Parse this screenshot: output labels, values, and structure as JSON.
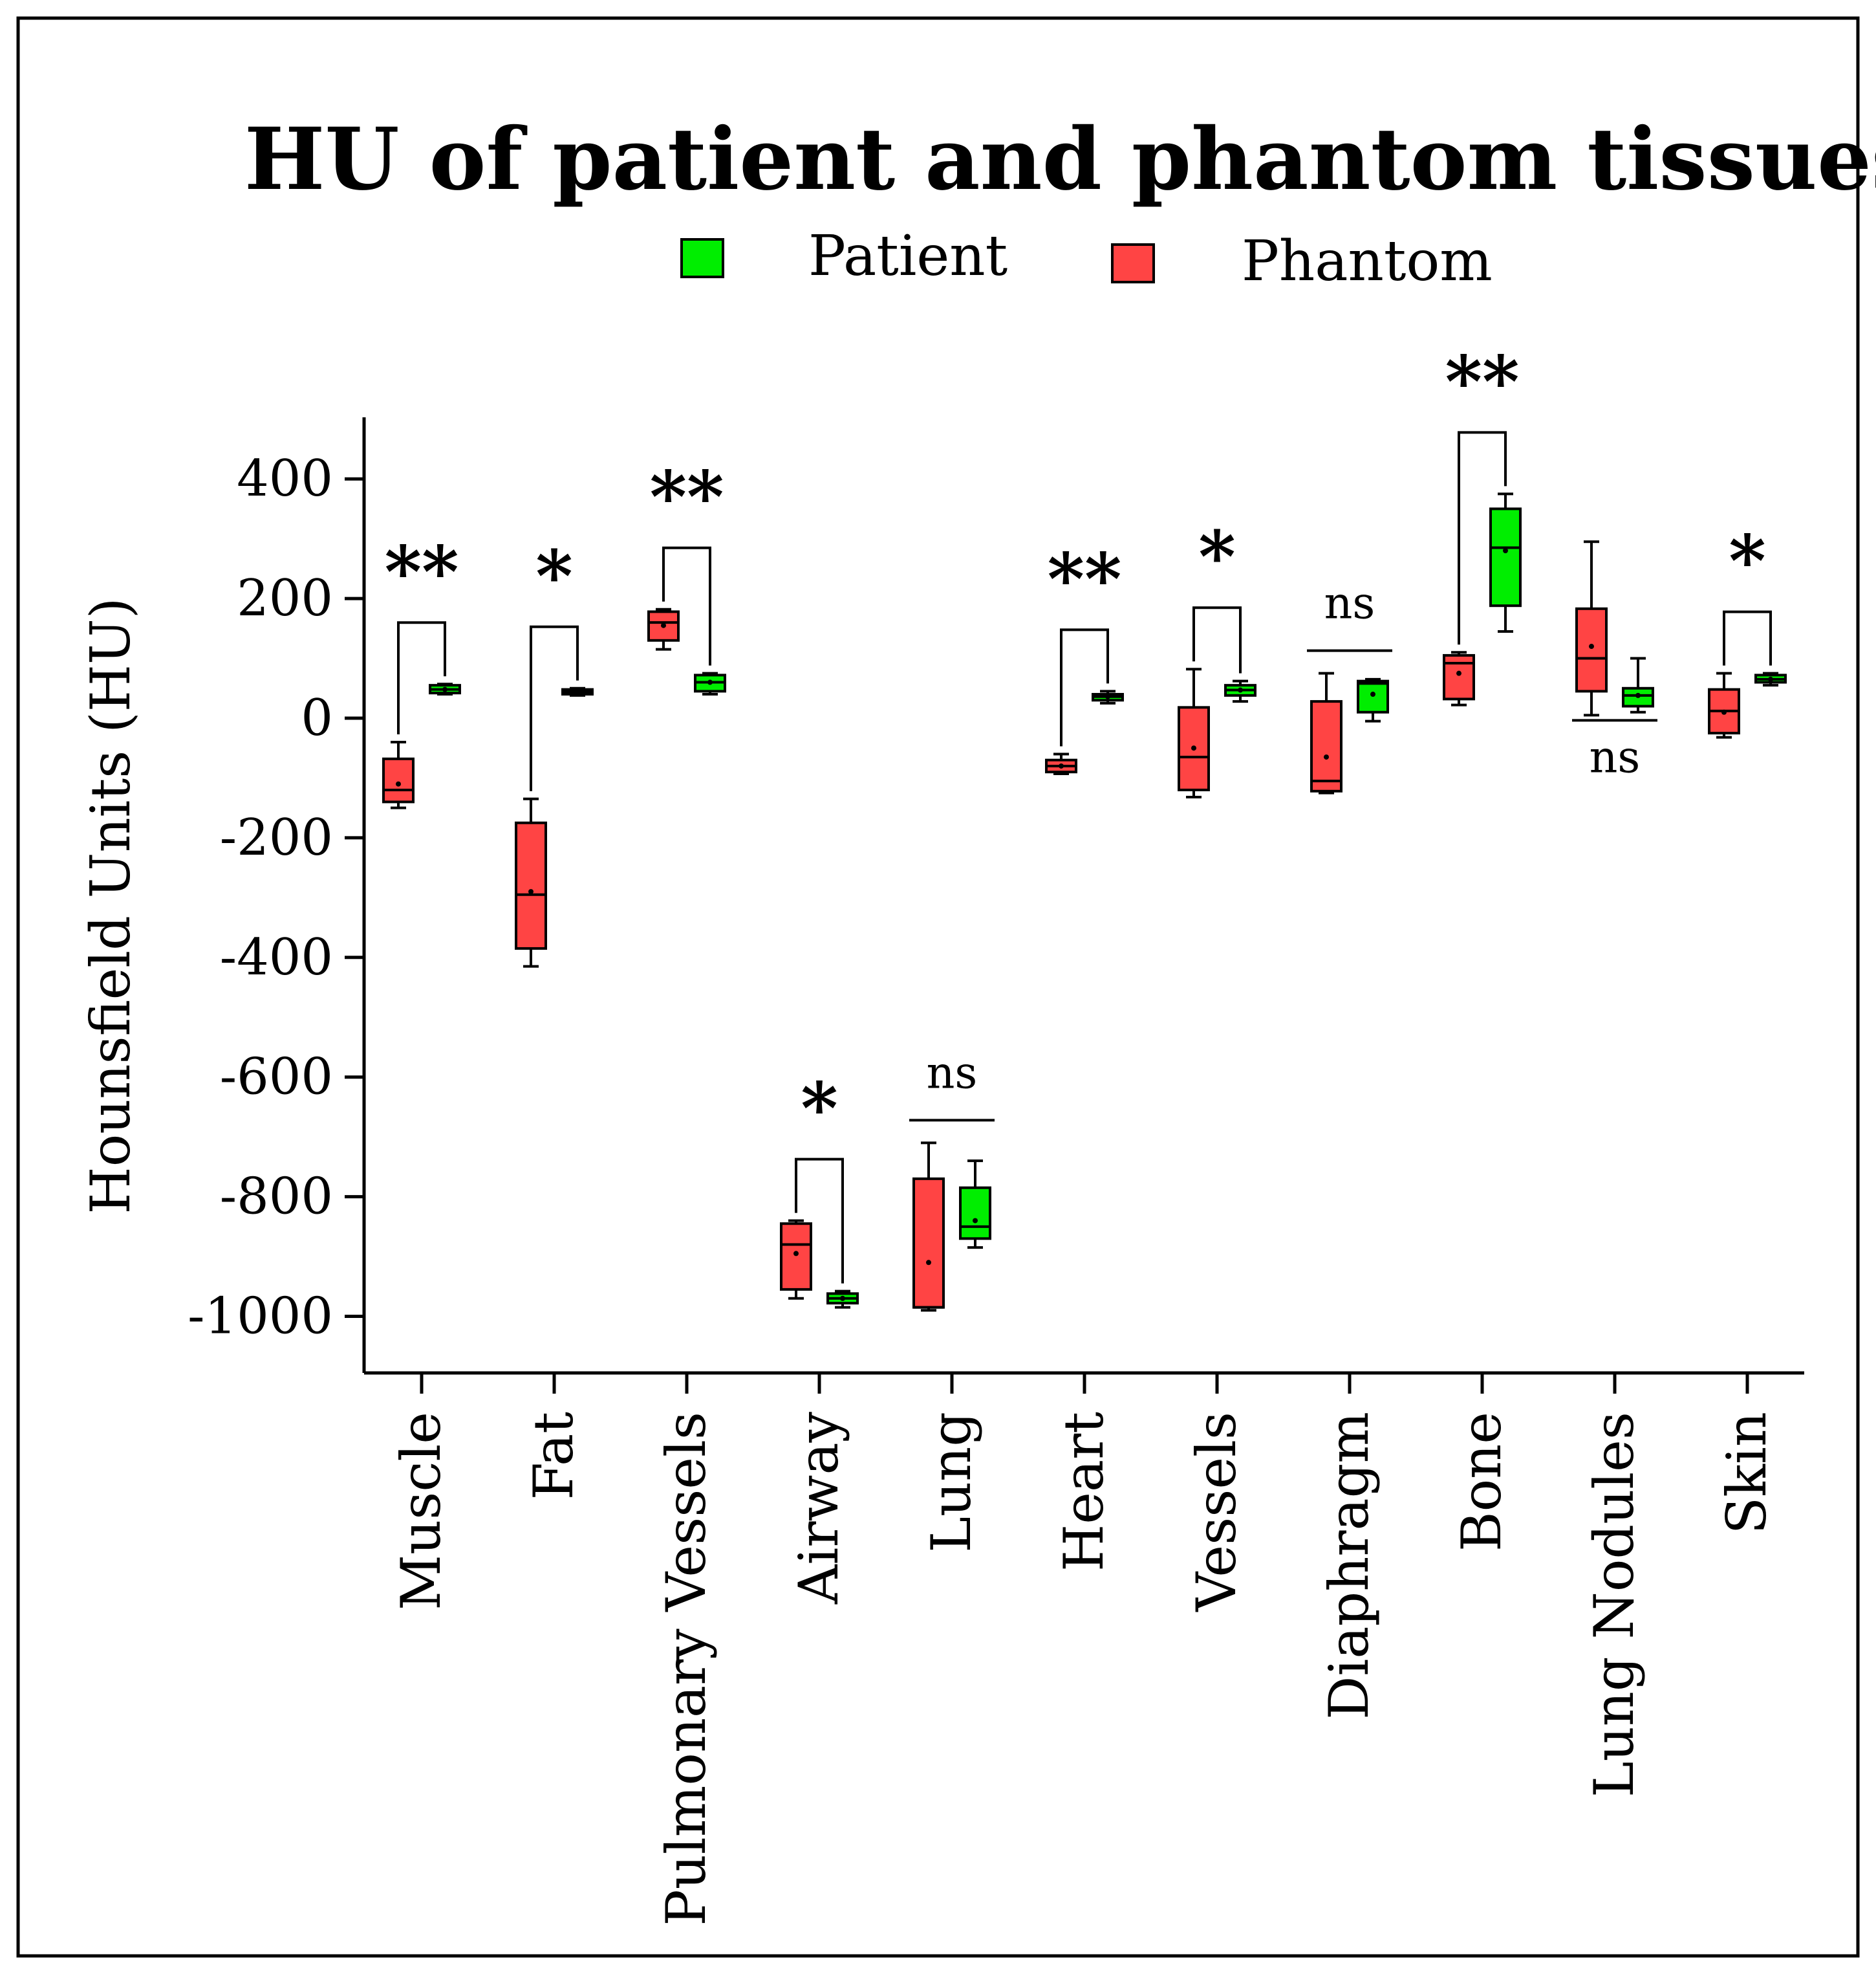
{
  "chart_data": {
    "type": "box",
    "title": "HU of patient and phantom tissues",
    "xlabel": "",
    "ylabel": "Hounsfield Units (HU)",
    "ylim": [
      -1100,
      500
    ],
    "yticks": [
      400,
      200,
      0,
      -200,
      -400,
      -600,
      -800,
      -1000
    ],
    "legend_position": "top",
    "categories": [
      "Muscle",
      "Fat",
      "Pulmonary Vessels",
      "Airway",
      "Lung",
      "Heart",
      "Vessels",
      "Diaphragm",
      "Bone",
      "Lung Nodules",
      "Skin"
    ],
    "series": [
      {
        "name": "Patient",
        "color": "#00ee00",
        "boxes": [
          {
            "min": 40,
            "q1": 42,
            "median": 48,
            "q3": 55,
            "max": 57,
            "mean": 48
          },
          {
            "min": 38,
            "q1": 40,
            "median": 44,
            "q3": 48,
            "max": 50,
            "mean": 44
          },
          {
            "min": 40,
            "q1": 45,
            "median": 60,
            "q3": 72,
            "max": 75,
            "mean": 60
          },
          {
            "min": -985,
            "q1": -978,
            "median": -970,
            "q3": -962,
            "max": -958,
            "mean": -970
          },
          {
            "min": -885,
            "q1": -870,
            "median": -850,
            "q3": -785,
            "max": -740,
            "mean": -840
          },
          {
            "min": 25,
            "q1": 30,
            "median": 36,
            "q3": 40,
            "max": 45,
            "mean": 36
          },
          {
            "min": 28,
            "q1": 38,
            "median": 47,
            "q3": 55,
            "max": 62,
            "mean": 47
          },
          {
            "min": -5,
            "q1": 10,
            "median": 58,
            "q3": 62,
            "max": 65,
            "mean": 40
          },
          {
            "min": 145,
            "q1": 188,
            "median": 285,
            "q3": 350,
            "max": 375,
            "mean": 280
          },
          {
            "min": 10,
            "q1": 20,
            "median": 38,
            "q3": 50,
            "max": 100,
            "mean": 38
          },
          {
            "min": 55,
            "q1": 60,
            "median": 65,
            "q3": 72,
            "max": 75,
            "mean": 65
          }
        ]
      },
      {
        "name": "Phantom",
        "color": "#ff4444",
        "boxes": [
          {
            "min": -150,
            "q1": -140,
            "median": -120,
            "q3": -68,
            "max": -40,
            "mean": -110
          },
          {
            "min": -415,
            "q1": -385,
            "median": -295,
            "q3": -175,
            "max": -135,
            "mean": -290
          },
          {
            "min": 115,
            "q1": 130,
            "median": 160,
            "q3": 178,
            "max": 182,
            "mean": 155
          },
          {
            "min": -970,
            "q1": -955,
            "median": -880,
            "q3": -845,
            "max": -840,
            "mean": -895
          },
          {
            "min": -990,
            "q1": -985,
            "median": -985,
            "q3": -770,
            "max": -710,
            "mean": -910
          },
          {
            "min": -93,
            "q1": -90,
            "median": -80,
            "q3": -70,
            "max": -60,
            "mean": -80
          },
          {
            "min": -132,
            "q1": -120,
            "median": -65,
            "q3": 18,
            "max": 82,
            "mean": -50
          },
          {
            "min": -125,
            "q1": -122,
            "median": -105,
            "q3": 28,
            "max": 75,
            "mean": -65
          },
          {
            "min": 22,
            "q1": 32,
            "median": 92,
            "q3": 105,
            "max": 110,
            "mean": 75
          },
          {
            "min": 5,
            "q1": 45,
            "median": 100,
            "q3": 183,
            "max": 295,
            "mean": 120
          },
          {
            "min": -32,
            "q1": -25,
            "median": 12,
            "q3": 48,
            "max": 75,
            "mean": 10
          }
        ]
      }
    ],
    "annotations": [
      {
        "category": "Muscle",
        "label": "**",
        "style": "bracket"
      },
      {
        "category": "Fat",
        "label": "*",
        "style": "bracket"
      },
      {
        "category": "Pulmonary Vessels",
        "label": "**",
        "style": "bracket"
      },
      {
        "category": "Airway",
        "label": "*",
        "style": "bracket"
      },
      {
        "category": "Lung",
        "label": "ns",
        "style": "line"
      },
      {
        "category": "Heart",
        "label": "**",
        "style": "bracket"
      },
      {
        "category": "Vessels",
        "label": "*",
        "style": "bracket"
      },
      {
        "category": "Diaphragm",
        "label": "ns",
        "style": "line"
      },
      {
        "category": "Bone",
        "label": "**",
        "style": "bracket"
      },
      {
        "category": "Lung Nodules",
        "label": "ns",
        "style": "line"
      },
      {
        "category": "Skin",
        "label": "*",
        "style": "bracket"
      }
    ]
  }
}
